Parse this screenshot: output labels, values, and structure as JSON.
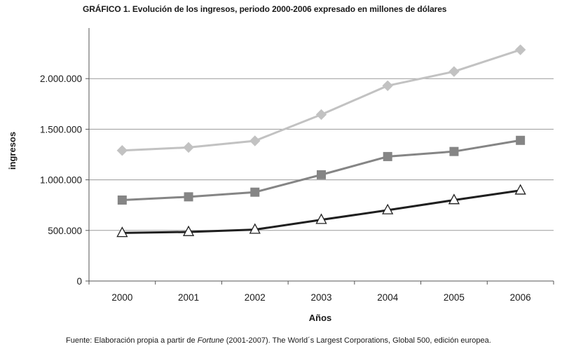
{
  "title": "GRÁFICO 1. Evolución de los ingresos, periodo 2000-2006 expresado en millones de dólares",
  "source": {
    "before": "Fuente: Elaboración propia a partir de ",
    "italic": "Fortune",
    "after": " (2001-2007). The World´s Largest Corporations, Global 500, edición europea."
  },
  "chart_data": {
    "type": "line",
    "title": "GRÁFICO 1. Evolución de los ingresos, periodo 2000-2006 expresado en millones de dólares",
    "xlabel": "Años",
    "ylabel": "ingresos",
    "categories": [
      "2000",
      "2001",
      "2002",
      "2003",
      "2004",
      "2005",
      "2006"
    ],
    "y_ticks": [
      0,
      500000,
      1000000,
      1500000,
      2000000
    ],
    "y_tick_labels": [
      "0",
      "500.000",
      "1.000.000",
      "1.500.000",
      "2.000.000"
    ],
    "ylim": [
      0,
      2500000
    ],
    "grid": "horizontal",
    "legend": "none",
    "series": [
      {
        "marker": "diamond",
        "color": "#c2c2c2",
        "values": [
          1290000,
          1320000,
          1385000,
          1645000,
          1930000,
          2070000,
          2285000
        ]
      },
      {
        "marker": "square",
        "color": "#858585",
        "values": [
          800000,
          832000,
          878000,
          1050000,
          1230000,
          1280000,
          1390000
        ]
      },
      {
        "marker": "triangle",
        "color": "#1f1f1f",
        "values": [
          475000,
          485000,
          508000,
          605000,
          700000,
          800000,
          895000
        ]
      }
    ]
  }
}
